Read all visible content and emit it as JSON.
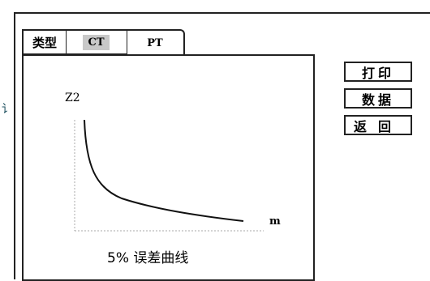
{
  "side_glyph": "讠",
  "tabs": {
    "type_label": "类型",
    "ct_label": "CT",
    "pt_label": "PT"
  },
  "buttons": {
    "print": "打印",
    "data": "数据",
    "back": "返回"
  },
  "chart": {
    "ylabel": "Z2",
    "xlabel": "m",
    "caption": "5% 误差曲线"
  }
}
